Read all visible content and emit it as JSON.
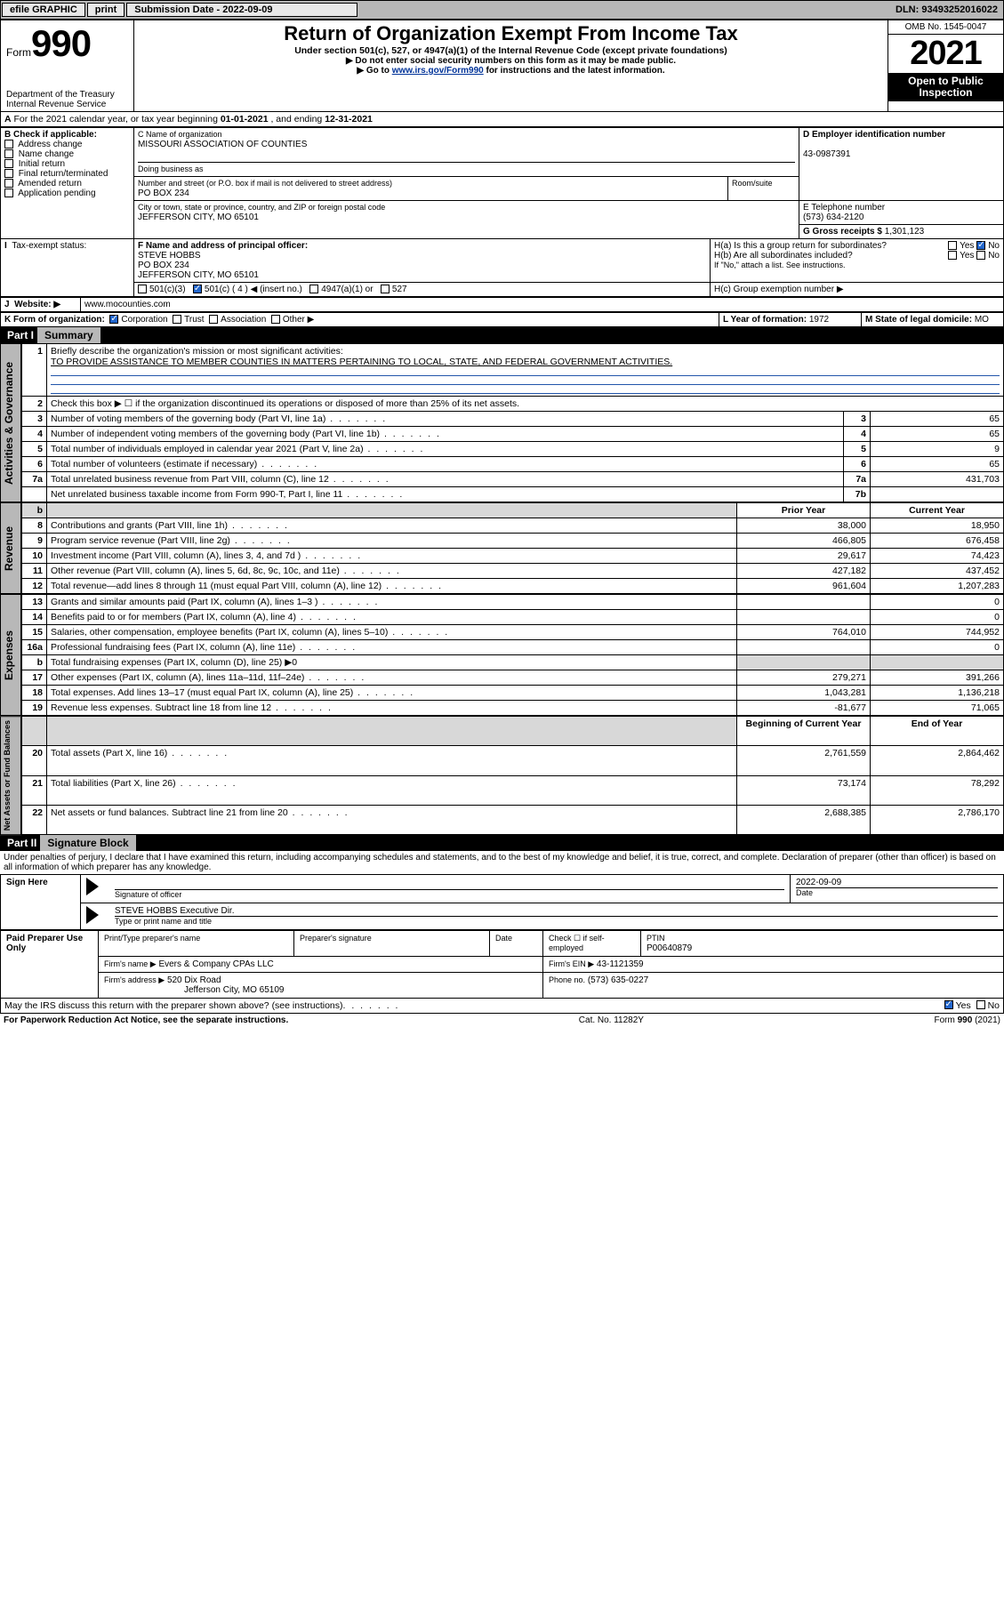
{
  "topbar": {
    "efile": "efile GRAPHIC",
    "print": "print",
    "sub_label": "Submission Date - 2022-09-09",
    "dln": "DLN: 93493252016022"
  },
  "header": {
    "form_word": "Form",
    "form_no": "990",
    "dept": "Department of the Treasury\nInternal Revenue Service",
    "title": "Return of Organization Exempt From Income Tax",
    "sub1": "Under section 501(c), 527, or 4947(a)(1) of the Internal Revenue Code (except private foundations)",
    "sub2": "▶ Do not enter social security numbers on this form as it may be made public.",
    "sub3_pre": "▶ Go to ",
    "sub3_link": "www.irs.gov/Form990",
    "sub3_post": " for instructions and the latest information.",
    "omb": "OMB No. 1545-0047",
    "year": "2021",
    "open": "Open to Public Inspection"
  },
  "A": {
    "text": "For the 2021 calendar year, or tax year beginning ",
    "begin": "01-01-2021",
    "mid": " , and ending ",
    "end": "12-31-2021"
  },
  "B": {
    "label": "B Check if applicable:",
    "items": [
      "Address change",
      "Name change",
      "Initial return",
      "Final return/terminated",
      "Amended return",
      "Application pending"
    ]
  },
  "C": {
    "name_label": "C Name of organization",
    "name": "MISSOURI ASSOCIATION OF COUNTIES",
    "dba_label": "Doing business as",
    "addr_label": "Number and street (or P.O. box if mail is not delivered to street address)",
    "room_label": "Room/suite",
    "addr": "PO BOX 234",
    "city_label": "City or town, state or province, country, and ZIP or foreign postal code",
    "city": "JEFFERSON CITY, MO  65101"
  },
  "D": {
    "label": "D Employer identification number",
    "val": "43-0987391"
  },
  "E": {
    "label": "E Telephone number",
    "val": "(573) 634-2120"
  },
  "G": {
    "label": "G Gross receipts $",
    "val": "1,301,123"
  },
  "F": {
    "label": "F Name and address of principal officer:",
    "name": "STEVE HOBBS",
    "addr1": "PO BOX 234",
    "addr2": "JEFFERSON CITY, MO  65101"
  },
  "H": {
    "a": "H(a)  Is this a group return for subordinates?",
    "b": "H(b)  Are all subordinates included?",
    "note": "If \"No,\" attach a list. See instructions.",
    "c": "H(c)  Group exemption number ▶",
    "yes": "Yes",
    "no": "No"
  },
  "I": {
    "label": "Tax-exempt status:",
    "o1": "501(c)(3)",
    "o2": "501(c) ( 4 ) ◀ (insert no.)",
    "o3": "4947(a)(1) or",
    "o4": "527"
  },
  "J": {
    "label": "Website: ▶",
    "val": "www.mocounties.com"
  },
  "K": {
    "label": "K Form of organization:",
    "o1": "Corporation",
    "o2": "Trust",
    "o3": "Association",
    "o4": "Other ▶"
  },
  "L": {
    "label": "L Year of formation:",
    "val": "1972"
  },
  "M": {
    "label": "M State of legal domicile:",
    "val": "MO"
  },
  "part1": {
    "label": "Part I",
    "name": "Summary"
  },
  "gov": {
    "label": "Activities & Governance",
    "l1": "Briefly describe the organization's mission or most significant activities:",
    "l1v": "TO PROVIDE ASSISTANCE TO MEMBER COUNTIES IN MATTERS PERTAINING TO LOCAL, STATE, AND FEDERAL GOVERNMENT ACTIVITIES.",
    "l2": "Check this box ▶ ☐  if the organization discontinued its operations or disposed of more than 25% of its net assets.",
    "rows": [
      {
        "n": "3",
        "d": "Number of voting members of the governing body (Part VI, line 1a)",
        "b": "3",
        "v": "65"
      },
      {
        "n": "4",
        "d": "Number of independent voting members of the governing body (Part VI, line 1b)",
        "b": "4",
        "v": "65"
      },
      {
        "n": "5",
        "d": "Total number of individuals employed in calendar year 2021 (Part V, line 2a)",
        "b": "5",
        "v": "9"
      },
      {
        "n": "6",
        "d": "Total number of volunteers (estimate if necessary)",
        "b": "6",
        "v": "65"
      },
      {
        "n": "7a",
        "d": "Total unrelated business revenue from Part VIII, column (C), line 12",
        "b": "7a",
        "v": "431,703"
      },
      {
        "n": "",
        "d": "Net unrelated business taxable income from Form 990-T, Part I, line 11",
        "b": "7b",
        "v": ""
      }
    ]
  },
  "rev": {
    "label": "Revenue",
    "hdr_b": "b",
    "hdr_py": "Prior Year",
    "hdr_cy": "Current Year",
    "rows": [
      {
        "n": "8",
        "d": "Contributions and grants (Part VIII, line 1h)",
        "py": "38,000",
        "cy": "18,950"
      },
      {
        "n": "9",
        "d": "Program service revenue (Part VIII, line 2g)",
        "py": "466,805",
        "cy": "676,458"
      },
      {
        "n": "10",
        "d": "Investment income (Part VIII, column (A), lines 3, 4, and 7d )",
        "py": "29,617",
        "cy": "74,423"
      },
      {
        "n": "11",
        "d": "Other revenue (Part VIII, column (A), lines 5, 6d, 8c, 9c, 10c, and 11e)",
        "py": "427,182",
        "cy": "437,452"
      },
      {
        "n": "12",
        "d": "Total revenue—add lines 8 through 11 (must equal Part VIII, column (A), line 12)",
        "py": "961,604",
        "cy": "1,207,283"
      }
    ]
  },
  "exp": {
    "label": "Expenses",
    "rows": [
      {
        "n": "13",
        "d": "Grants and similar amounts paid (Part IX, column (A), lines 1–3 )",
        "py": "",
        "cy": "0"
      },
      {
        "n": "14",
        "d": "Benefits paid to or for members (Part IX, column (A), line 4)",
        "py": "",
        "cy": "0"
      },
      {
        "n": "15",
        "d": "Salaries, other compensation, employee benefits (Part IX, column (A), lines 5–10)",
        "py": "764,010",
        "cy": "744,952"
      },
      {
        "n": "16a",
        "d": "Professional fundraising fees (Part IX, column (A), line 11e)",
        "py": "",
        "cy": "0"
      },
      {
        "n": "b",
        "d": "Total fundraising expenses (Part IX, column (D), line 25) ▶0",
        "py": "",
        "cy": "",
        "shade": true
      },
      {
        "n": "17",
        "d": "Other expenses (Part IX, column (A), lines 11a–11d, 11f–24e)",
        "py": "279,271",
        "cy": "391,266"
      },
      {
        "n": "18",
        "d": "Total expenses. Add lines 13–17 (must equal Part IX, column (A), line 25)",
        "py": "1,043,281",
        "cy": "1,136,218"
      },
      {
        "n": "19",
        "d": "Revenue less expenses. Subtract line 18 from line 12",
        "py": "-81,677",
        "cy": "71,065"
      }
    ]
  },
  "net": {
    "label": "Net Assets or Fund Balances",
    "hdr_b": "Beginning of Current Year",
    "hdr_e": "End of Year",
    "rows": [
      {
        "n": "20",
        "d": "Total assets (Part X, line 16)",
        "py": "2,761,559",
        "cy": "2,864,462"
      },
      {
        "n": "21",
        "d": "Total liabilities (Part X, line 26)",
        "py": "73,174",
        "cy": "78,292"
      },
      {
        "n": "22",
        "d": "Net assets or fund balances. Subtract line 21 from line 20",
        "py": "2,688,385",
        "cy": "2,786,170"
      }
    ]
  },
  "part2": {
    "label": "Part II",
    "name": "Signature Block"
  },
  "perjury": "Under penalties of perjury, I declare that I have examined this return, including accompanying schedules and statements, and to the best of my knowledge and belief, it is true, correct, and complete. Declaration of preparer (other than officer) is based on all information of which preparer has any knowledge.",
  "sign": {
    "here": "Sign Here",
    "sig_label": "Signature of officer",
    "date_label": "Date",
    "date": "2022-09-09",
    "name": "STEVE HOBBS  Executive Dir.",
    "name_label": "Type or print name and title"
  },
  "prep": {
    "label": "Paid Preparer Use Only",
    "c1": "Print/Type preparer's name",
    "c2": "Preparer's signature",
    "c3": "Date",
    "c4": "Check ☐ if self-employed",
    "c5l": "PTIN",
    "c5v": "P00640879",
    "firm_l": "Firm's name    ▶",
    "firm_v": "Evers & Company CPAs LLC",
    "ein_l": "Firm's EIN ▶",
    "ein_v": "43-1121359",
    "addr_l": "Firm's address ▶",
    "addr_v": "520 Dix Road",
    "addr_v2": "Jefferson City, MO  65109",
    "phone_l": "Phone no.",
    "phone_v": "(573) 635-0227"
  },
  "may": {
    "q": "May the IRS discuss this return with the preparer shown above? (see instructions)",
    "yes": "Yes",
    "no": "No"
  },
  "footer": {
    "l": "For Paperwork Reduction Act Notice, see the separate instructions.",
    "c": "Cat. No. 11282Y",
    "r": "Form 990 (2021)"
  },
  "colors": {
    "topbar_bg": "#b8b8b8",
    "shade": "#d8d8d8",
    "link": "#003399",
    "check": "#2266cc"
  }
}
